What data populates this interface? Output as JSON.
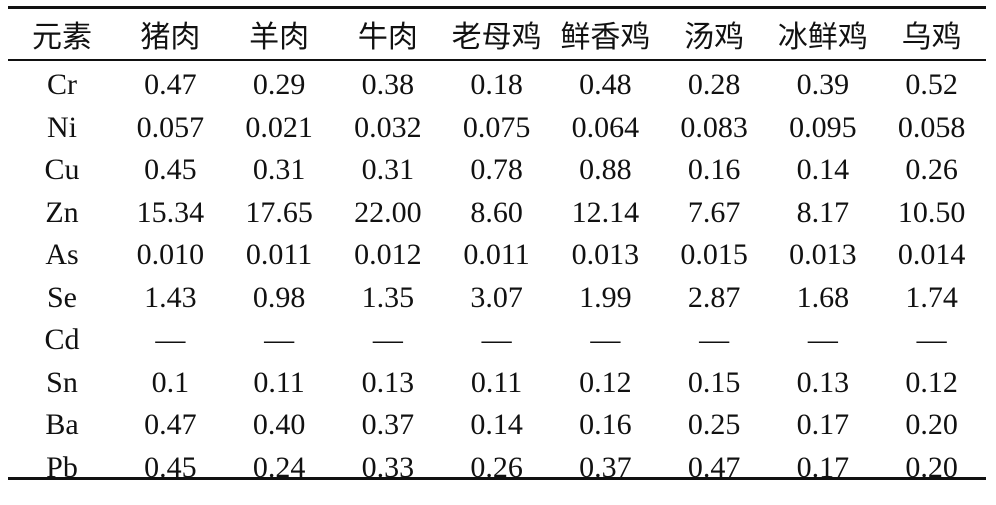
{
  "table": {
    "headers": [
      "元素",
      "猪肉",
      "羊肉",
      "牛肉",
      "老母鸡",
      "鲜香鸡",
      "汤鸡",
      "冰鲜鸡",
      "乌鸡"
    ],
    "rows": [
      [
        "Cr",
        "0.47",
        "0.29",
        "0.38",
        "0.18",
        "0.48",
        "0.28",
        "0.39",
        "0.52"
      ],
      [
        "Ni",
        "0.057",
        "0.021",
        "0.032",
        "0.075",
        "0.064",
        "0.083",
        "0.095",
        "0.058"
      ],
      [
        "Cu",
        "0.45",
        "0.31",
        "0.31",
        "0.78",
        "0.88",
        "0.16",
        "0.14",
        "0.26"
      ],
      [
        "Zn",
        "15.34",
        "17.65",
        "22.00",
        "8.60",
        "12.14",
        "7.67",
        "8.17",
        "10.50"
      ],
      [
        "As",
        "0.010",
        "0.011",
        "0.012",
        "0.011",
        "0.013",
        "0.015",
        "0.013",
        "0.014"
      ],
      [
        "Se",
        "1.43",
        "0.98",
        "1.35",
        "3.07",
        "1.99",
        "2.87",
        "1.68",
        "1.74"
      ],
      [
        "Cd",
        "—",
        "—",
        "—",
        "—",
        "—",
        "—",
        "—",
        "—"
      ],
      [
        "Sn",
        "0.1",
        "0.11",
        "0.13",
        "0.11",
        "0.12",
        "0.15",
        "0.13",
        "0.12"
      ],
      [
        "Ba",
        "0.47",
        "0.40",
        "0.37",
        "0.14",
        "0.16",
        "0.25",
        "0.17",
        "0.20"
      ],
      [
        "Pb",
        "0.45",
        "0.24",
        "0.33",
        "0.26",
        "0.37",
        "0.47",
        "0.17",
        "0.20"
      ]
    ]
  }
}
